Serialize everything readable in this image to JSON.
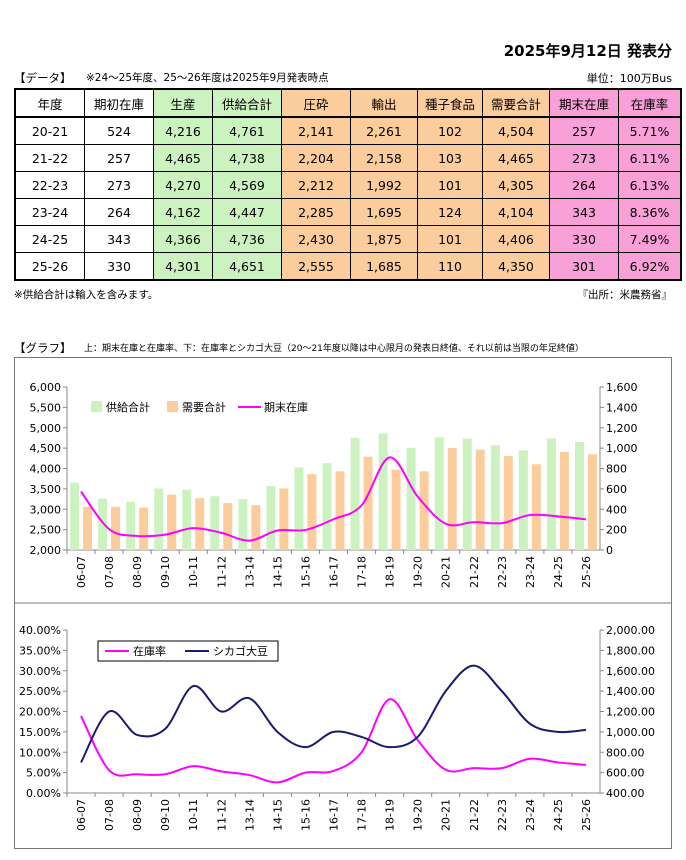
{
  "header": {
    "date_title": "2025年9月12日 発表分",
    "data_label": "【データ】",
    "data_note": "※24～25年度、25～26年度は2025年9月発表時点",
    "unit": "単位：100万Bus"
  },
  "table": {
    "columns": [
      "年度",
      "期初在庫",
      "生産",
      "供給合計",
      "圧砕",
      "輸出",
      "種子食品",
      "需要合計",
      "期末在庫",
      "在庫率"
    ],
    "rows": [
      [
        "20-21",
        "524",
        "4,216",
        "4,761",
        "2,141",
        "2,261",
        "102",
        "4,504",
        "257",
        "5.71%"
      ],
      [
        "21-22",
        "257",
        "4,465",
        "4,738",
        "2,204",
        "2,158",
        "103",
        "4,465",
        "273",
        "6.11%"
      ],
      [
        "22-23",
        "273",
        "4,270",
        "4,569",
        "2,212",
        "1,992",
        "101",
        "4,305",
        "264",
        "6.13%"
      ],
      [
        "23-24",
        "264",
        "4,162",
        "4,447",
        "2,285",
        "1,695",
        "124",
        "4,104",
        "343",
        "8.36%"
      ],
      [
        "24-25",
        "343",
        "4,366",
        "4,736",
        "2,430",
        "1,875",
        "101",
        "4,406",
        "330",
        "7.49%"
      ],
      [
        "25-26",
        "330",
        "4,301",
        "4,651",
        "2,555",
        "1,685",
        "110",
        "4,350",
        "301",
        "6.92%"
      ]
    ],
    "column_colors": [
      "",
      "",
      "#ccf2c0",
      "#ccf2c0",
      "#fbcc9c",
      "#fbcc9c",
      "#fbcc9c",
      "#fbcc9c",
      "#f9a0d8",
      "#f9a0d8"
    ]
  },
  "footer": {
    "note": "※供給合計は輸入を含みます。",
    "source": "『出所：米農務省』"
  },
  "graph": {
    "label": "【グラフ】",
    "note": "上：期末在庫と在庫率、下：在庫率とシカゴ大豆（20～21年度以降は中心限月の発表日終値、それ以前は当限の年足終値）"
  },
  "colors": {
    "supply": "#ccf2c0",
    "demand": "#fbcc9c",
    "magenta": "#ff00ff",
    "navy": "#1a1a6e"
  },
  "chart_data": [
    {
      "type": "bar",
      "categories": [
        "06-07",
        "07-08",
        "08-09",
        "09-10",
        "10-11",
        "11-12",
        "13-14",
        "14-15",
        "15-16",
        "16-17",
        "17-18",
        "18-19",
        "19-20",
        "20-21",
        "21-22",
        "22-23",
        "23-24",
        "24-25",
        "25-26"
      ],
      "series": [
        {
          "name": "供給合計",
          "axis": "left",
          "type": "bar",
          "values": [
            3650,
            3260,
            3180,
            3510,
            3480,
            3320,
            3250,
            3570,
            4030,
            4130,
            4750,
            4860,
            4510,
            4761,
            4738,
            4569,
            4447,
            4736,
            4651
          ]
        },
        {
          "name": "需要合計",
          "axis": "left",
          "type": "bar",
          "values": [
            3060,
            3060,
            3040,
            3360,
            3270,
            3150,
            3100,
            3510,
            3860,
            3930,
            4290,
            3970,
            3930,
            4504,
            4465,
            4305,
            4104,
            4406,
            4350
          ]
        },
        {
          "name": "期末在庫",
          "axis": "right",
          "type": "line",
          "values": [
            574,
            205,
            138,
            151,
            215,
            169,
            92,
            191,
            197,
            302,
            438,
            909,
            525,
            257,
            273,
            264,
            343,
            330,
            301
          ]
        }
      ],
      "y_left": {
        "min": 2000,
        "max": 6000,
        "ticks": [
          "2,000",
          "2,500",
          "3,000",
          "3,500",
          "4,000",
          "4,500",
          "5,000",
          "5,500",
          "6,000"
        ]
      },
      "y_right": {
        "min": 0,
        "max": 1600,
        "ticks": [
          "0",
          "200",
          "400",
          "600",
          "800",
          "1,000",
          "1,200",
          "1,400",
          "1,600"
        ]
      },
      "legend_position": "top-left",
      "grid": false
    },
    {
      "type": "line",
      "categories": [
        "06-07",
        "07-08",
        "08-09",
        "09-10",
        "10-11",
        "11-12",
        "13-14",
        "14-15",
        "15-16",
        "16-17",
        "17-18",
        "18-19",
        "19-20",
        "20-21",
        "21-22",
        "22-23",
        "23-24",
        "24-25",
        "25-26"
      ],
      "series": [
        {
          "name": "在庫率",
          "axis": "left",
          "values": [
            18.9,
            5.6,
            4.6,
            4.6,
            6.6,
            5.3,
            4.4,
            2.6,
            5.0,
            5.4,
            10.0,
            23.0,
            13.0,
            5.7,
            6.1,
            6.1,
            8.4,
            7.5,
            6.9
          ]
        },
        {
          "name": "シカゴ大豆",
          "axis": "right",
          "values": [
            700,
            1200,
            970,
            1030,
            1450,
            1200,
            1330,
            1000,
            850,
            1000,
            950,
            850,
            950,
            1400,
            1650,
            1400,
            1080,
            1000,
            1020
          ]
        }
      ],
      "y_left": {
        "min": 0,
        "max": 40,
        "ticks": [
          "0.00%",
          "5.00%",
          "10.00%",
          "15.00%",
          "20.00%",
          "25.00%",
          "30.00%",
          "35.00%",
          "40.00%"
        ]
      },
      "y_right": {
        "min": 400,
        "max": 2000,
        "ticks": [
          "400.00",
          "600.00",
          "800.00",
          "1,000.00",
          "1,200.00",
          "1,400.00",
          "1,600.00",
          "1,800.00",
          "2,000.00"
        ]
      },
      "legend_position": "top-left",
      "grid": false
    }
  ]
}
